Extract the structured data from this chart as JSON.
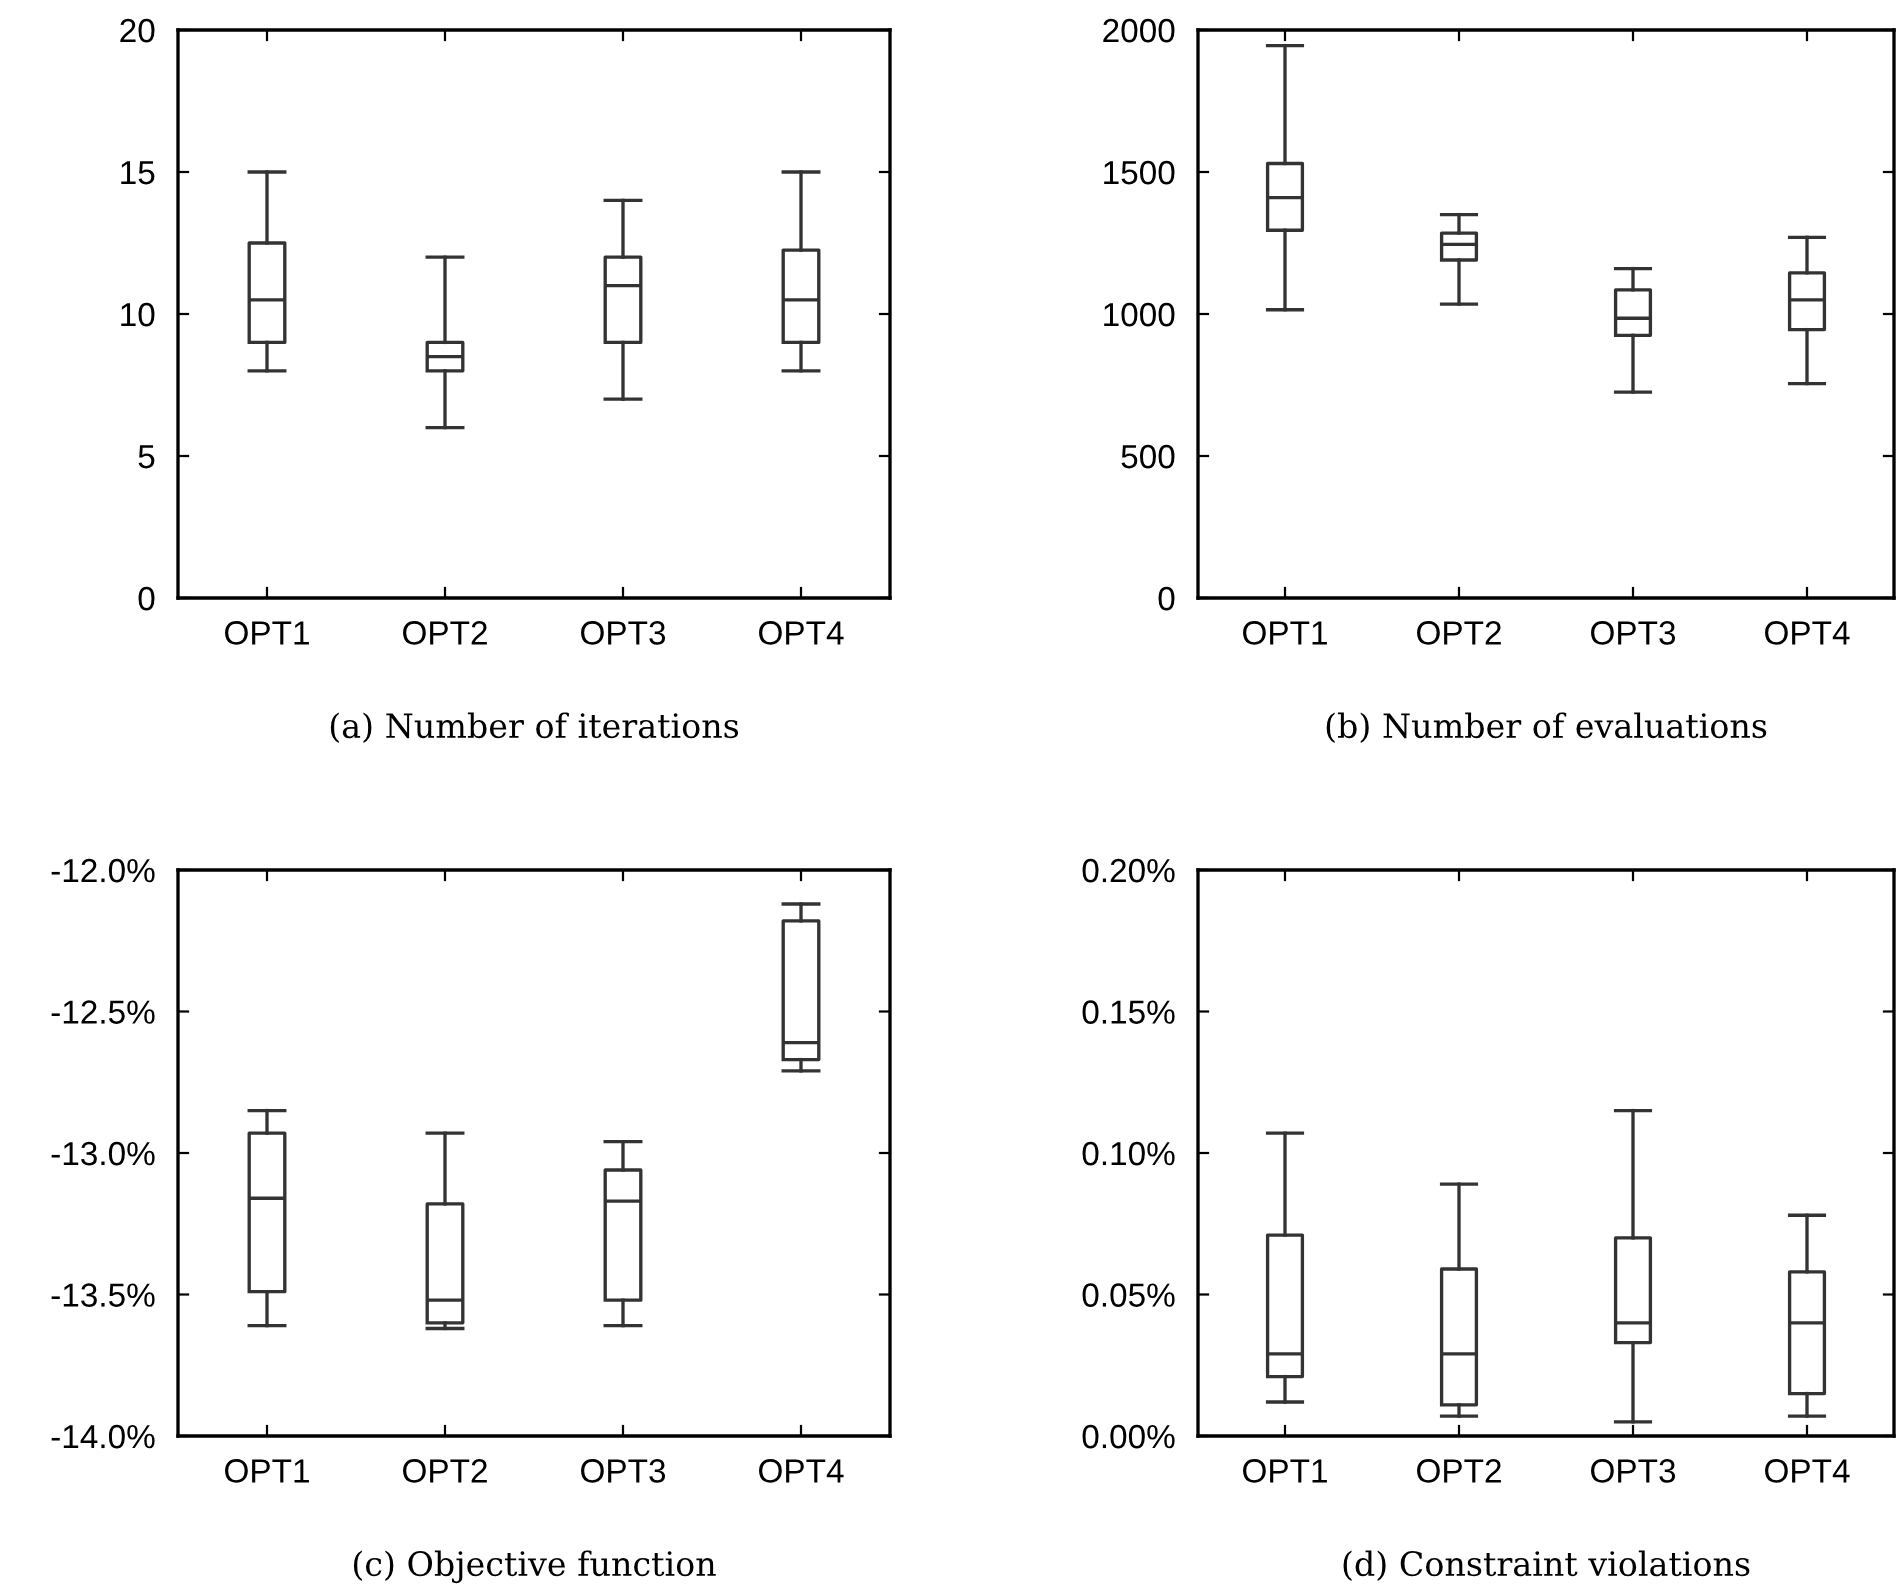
{
  "chart_data": [
    {
      "type": "box",
      "xlabel": "(a) Number of iterations",
      "categories": [
        "OPT1",
        "OPT2",
        "OPT3",
        "OPT4"
      ],
      "ylim": [
        0,
        20
      ],
      "yticks": [
        0,
        5,
        10,
        15,
        20
      ],
      "boxes": [
        {
          "low": 8,
          "q1": 9,
          "median": 10.5,
          "q3": 12.5,
          "high": 15
        },
        {
          "low": 6,
          "q1": 8,
          "median": 8.5,
          "q3": 9,
          "high": 12
        },
        {
          "low": 7,
          "q1": 9,
          "median": 11,
          "q3": 12,
          "high": 14
        },
        {
          "low": 8,
          "q1": 9,
          "median": 10.5,
          "q3": 12.25,
          "high": 15
        }
      ]
    },
    {
      "type": "box",
      "xlabel": "(b) Number of evaluations",
      "categories": [
        "OPT1",
        "OPT2",
        "OPT3",
        "OPT4"
      ],
      "ylim": [
        0,
        2000
      ],
      "yticks": [
        0,
        500,
        1000,
        1500,
        2000
      ],
      "boxes": [
        {
          "low": 1015,
          "q1": 1295,
          "median": 1410,
          "q3": 1530,
          "high": 1945
        },
        {
          "low": 1035,
          "q1": 1190,
          "median": 1245,
          "q3": 1285,
          "high": 1350
        },
        {
          "low": 725,
          "q1": 925,
          "median": 985,
          "q3": 1085,
          "high": 1160
        },
        {
          "low": 755,
          "q1": 945,
          "median": 1050,
          "q3": 1145,
          "high": 1270
        }
      ]
    },
    {
      "type": "box",
      "xlabel": "(c) Objective function",
      "categories": [
        "OPT1",
        "OPT2",
        "OPT3",
        "OPT4"
      ],
      "ylim": [
        -14,
        -12
      ],
      "yticks": [
        {
          "value": -14,
          "label": "-14.0%"
        },
        {
          "value": -13.5,
          "label": "-13.5%"
        },
        {
          "value": -13,
          "label": "-13.0%"
        },
        {
          "value": -12.5,
          "label": "-12.5%"
        },
        {
          "value": -12,
          "label": "-12.0%"
        }
      ],
      "boxes": [
        {
          "low": -13.61,
          "q1": -13.49,
          "median": -13.16,
          "q3": -12.93,
          "high": -12.85
        },
        {
          "low": -13.62,
          "q1": -13.6,
          "median": -13.52,
          "q3": -13.18,
          "high": -12.93
        },
        {
          "low": -13.61,
          "q1": -13.52,
          "median": -13.17,
          "q3": -13.06,
          "high": -12.96
        },
        {
          "low": -12.71,
          "q1": -12.67,
          "median": -12.61,
          "q3": -12.18,
          "high": -12.12
        }
      ]
    },
    {
      "type": "box",
      "xlabel": "(d) Constraint violations",
      "categories": [
        "OPT1",
        "OPT2",
        "OPT3",
        "OPT4"
      ],
      "ylim": [
        0,
        0.2
      ],
      "yticks": [
        {
          "value": 0,
          "label": "0.00%"
        },
        {
          "value": 0.05,
          "label": "0.05%"
        },
        {
          "value": 0.1,
          "label": "0.10%"
        },
        {
          "value": 0.15,
          "label": "0.15%"
        },
        {
          "value": 0.2,
          "label": "0.20%"
        }
      ],
      "boxes": [
        {
          "low": 0.012,
          "q1": 0.021,
          "median": 0.029,
          "q3": 0.071,
          "high": 0.107
        },
        {
          "low": 0.007,
          "q1": 0.011,
          "median": 0.029,
          "q3": 0.059,
          "high": 0.089
        },
        {
          "low": 0.005,
          "q1": 0.033,
          "median": 0.04,
          "q3": 0.07,
          "high": 0.115
        },
        {
          "low": 0.007,
          "q1": 0.015,
          "median": 0.04,
          "q3": 0.058,
          "high": 0.078
        }
      ]
    }
  ]
}
